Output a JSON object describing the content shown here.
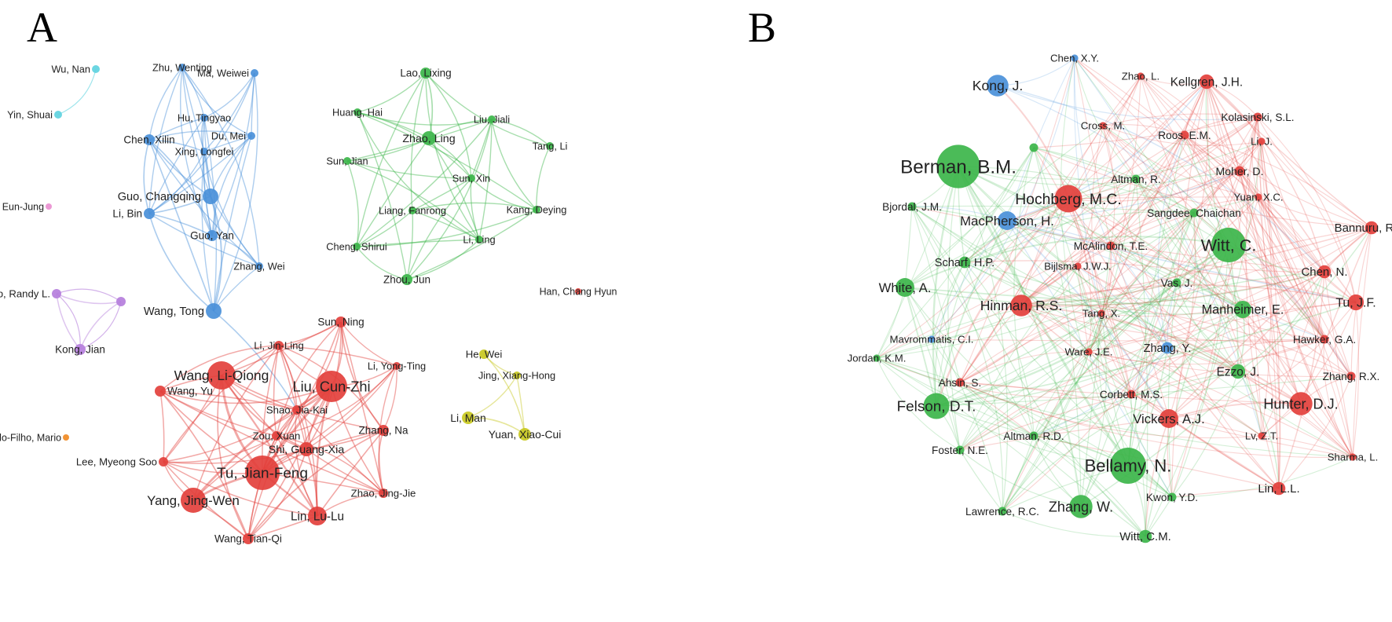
{
  "panels": [
    {
      "letter": "A",
      "clusters": {
        "red": "#e3403c",
        "blue": "#4a90d9",
        "green": "#3cb54a",
        "yellow": "#c8c820",
        "purple": "#b57edc",
        "cyan": "#5fd3e0",
        "orange": "#f08a24",
        "pink": "#e98fd0"
      },
      "nodes": [
        {
          "label": "Wu, Nan",
          "c": "cyan",
          "w": 1
        },
        {
          "label": "Yin, Shuai",
          "c": "cyan",
          "w": 1
        },
        {
          "label": "Zhu, Wenting",
          "c": "blue",
          "w": 1
        },
        {
          "label": "Ma, Weiwei",
          "c": "blue",
          "w": 1
        },
        {
          "label": "Hu, Tingyao",
          "c": "blue",
          "w": 1
        },
        {
          "label": "Chen, Xilin",
          "c": "blue",
          "w": 1.4
        },
        {
          "label": "Du, Mei",
          "c": "blue",
          "w": 1
        },
        {
          "label": "Xing, Longfei",
          "c": "blue",
          "w": 1
        },
        {
          "label": "Guo, Changqing",
          "c": "blue",
          "w": 2
        },
        {
          "label": "Li, Bin",
          "c": "blue",
          "w": 1.4
        },
        {
          "label": "Guo, Yan",
          "c": "blue",
          "w": 1.4
        },
        {
          "label": "Zhang, Wei",
          "c": "blue",
          "w": 1
        },
        {
          "label": "Wang, Tong",
          "c": "blue",
          "w": 2
        },
        {
          "label": "Kim, Eun-Jung",
          "c": "pink",
          "w": 0.8
        },
        {
          "label": "Gollub, Randy L.",
          "c": "purple",
          "w": 1.2
        },
        {
          "label": "",
          "c": "purple",
          "w": 1.2
        },
        {
          "label": "Kong, Jian",
          "c": "purple",
          "w": 1.4
        },
        {
          "label": "Bernardo-Filho, Mario",
          "c": "orange",
          "w": 0.8
        },
        {
          "label": "Lao, Lixing",
          "c": "green",
          "w": 1.4
        },
        {
          "label": "Huang, Hai",
          "c": "green",
          "w": 1
        },
        {
          "label": "Liu, Jiali",
          "c": "green",
          "w": 1
        },
        {
          "label": "Zhao, Ling",
          "c": "green",
          "w": 1.8
        },
        {
          "label": "Tang, Li",
          "c": "green",
          "w": 1
        },
        {
          "label": "Sun, Jian",
          "c": "green",
          "w": 1
        },
        {
          "label": "Sun, Xin",
          "c": "green",
          "w": 1
        },
        {
          "label": "Liang, Fanrong",
          "c": "green",
          "w": 1
        },
        {
          "label": "Kang, Deying",
          "c": "green",
          "w": 1
        },
        {
          "label": "Li, Ling",
          "c": "green",
          "w": 1
        },
        {
          "label": "Cheng, Shirui",
          "c": "green",
          "w": 1
        },
        {
          "label": "Zhou, Jun",
          "c": "green",
          "w": 1.4
        },
        {
          "label": "Han, Chang Hyun",
          "c": "red",
          "w": 0.8
        },
        {
          "label": "Sun, Ning",
          "c": "red",
          "w": 1.4
        },
        {
          "label": "Li, Jin-Ling",
          "c": "red",
          "w": 1.2
        },
        {
          "label": "Wang, Li-Qiong",
          "c": "red",
          "w": 3.6
        },
        {
          "label": "Li, Yong-Ting",
          "c": "red",
          "w": 1
        },
        {
          "label": "Liu, Cun-Zhi",
          "c": "red",
          "w": 4
        },
        {
          "label": "Wang, Yu",
          "c": "red",
          "w": 1.4
        },
        {
          "label": "Shao, Jia-Kai",
          "c": "red",
          "w": 1.2
        },
        {
          "label": "Zhang, Na",
          "c": "red",
          "w": 1.4
        },
        {
          "label": "Zou, Xuan",
          "c": "red",
          "w": 1.2
        },
        {
          "label": "Shi, Guang-Xia",
          "c": "red",
          "w": 1.8
        },
        {
          "label": "Lee, Myeong Soo",
          "c": "red",
          "w": 1.2
        },
        {
          "label": "Tu, Jian-Feng",
          "c": "red",
          "w": 4.4
        },
        {
          "label": "Zhao, Jing-Jie",
          "c": "red",
          "w": 1.2
        },
        {
          "label": "Yang, Jing-Wen",
          "c": "red",
          "w": 3.2
        },
        {
          "label": "Lin, Lu-Lu",
          "c": "red",
          "w": 2.4
        },
        {
          "label": "Wang, Tian-Qi",
          "c": "red",
          "w": 1.4
        },
        {
          "label": "He, Wei",
          "c": "yellow",
          "w": 1.2
        },
        {
          "label": "Jing, Xiang-Hong",
          "c": "yellow",
          "w": 1
        },
        {
          "label": "Li, Man",
          "c": "yellow",
          "w": 1.6
        },
        {
          "label": "Yuan, Xiao-Cui",
          "c": "yellow",
          "w": 1.6
        }
      ]
    },
    {
      "letter": "B",
      "clusters": {
        "red": "#e3403c",
        "blue": "#4a90d9",
        "green": "#3cb54a"
      },
      "nodes": [
        {
          "label": "Chen, X.Y.",
          "c": "blue",
          "w": 1
        },
        {
          "label": "Kong, J.",
          "c": "blue",
          "w": 3
        },
        {
          "label": "Zhao, L.",
          "c": "red",
          "w": 1
        },
        {
          "label": "Kellgren, J.H.",
          "c": "red",
          "w": 2
        },
        {
          "label": "Cross, M.",
          "c": "red",
          "w": 1
        },
        {
          "label": "Kolasinski, S.L.",
          "c": "red",
          "w": 1.2
        },
        {
          "label": "Roos, E.M.",
          "c": "red",
          "w": 1.2
        },
        {
          "label": "Li, J.",
          "c": "red",
          "w": 1
        },
        {
          "label": "Berman, B.M.",
          "c": "green",
          "w": 6
        },
        {
          "label": "Altman, R.",
          "c": "green",
          "w": 1.2
        },
        {
          "label": "Moher, D.",
          "c": "red",
          "w": 1.4
        },
        {
          "label": "Hochberg, M.C.",
          "c": "red",
          "w": 3.8
        },
        {
          "label": "Sangdee, Chaichan",
          "c": "green",
          "w": 1.2
        },
        {
          "label": "Yuan, X.C.",
          "c": "red",
          "w": 1
        },
        {
          "label": "Bjordal, J.M.",
          "c": "green",
          "w": 1.2
        },
        {
          "label": "MacPherson, H.",
          "c": "blue",
          "w": 2.6
        },
        {
          "label": "Witt, C.",
          "c": "green",
          "w": 4.8
        },
        {
          "label": "Bannuru, R.R.",
          "c": "red",
          "w": 1.8
        },
        {
          "label": "McAlindon, T.E.",
          "c": "red",
          "w": 1.2
        },
        {
          "label": "Scharf, H.P.",
          "c": "green",
          "w": 1.6
        },
        {
          "label": "Bijlsma, J.W.J.",
          "c": "red",
          "w": 1
        },
        {
          "label": "Vas, J.",
          "c": "green",
          "w": 1.2
        },
        {
          "label": "Chen, N.",
          "c": "red",
          "w": 1.8
        },
        {
          "label": "White, A.",
          "c": "green",
          "w": 2.6
        },
        {
          "label": "Hinman, R.S.",
          "c": "red",
          "w": 3
        },
        {
          "label": "Manheimer, E.",
          "c": "green",
          "w": 2.4
        },
        {
          "label": "Tu, J.F.",
          "c": "red",
          "w": 2.2
        },
        {
          "label": "Tang, X.",
          "c": "red",
          "w": 1
        },
        {
          "label": "Mavrommatis, C.I.",
          "c": "blue",
          "w": 1
        },
        {
          "label": "Ware, J.E.",
          "c": "red",
          "w": 1
        },
        {
          "label": "Zhang, Y.",
          "c": "blue",
          "w": 1.6
        },
        {
          "label": "Hawker, G.A.",
          "c": "red",
          "w": 1.2
        },
        {
          "label": "Jordan, K.M.",
          "c": "green",
          "w": 1
        },
        {
          "label": "Ezzo, J.",
          "c": "green",
          "w": 2
        },
        {
          "label": "Ahsin, S.",
          "c": "red",
          "w": 1.2
        },
        {
          "label": "Corbett, M.S.",
          "c": "red",
          "w": 1.2
        },
        {
          "label": "Zhang, R.X.",
          "c": "red",
          "w": 1.2
        },
        {
          "label": "Hunter, D.J.",
          "c": "red",
          "w": 3.2
        },
        {
          "label": "Felson, D.T.",
          "c": "green",
          "w": 3.6
        },
        {
          "label": "Vickers, A.J.",
          "c": "red",
          "w": 2.6
        },
        {
          "label": "Altman, R.D.",
          "c": "green",
          "w": 1.2
        },
        {
          "label": "Lv, Z.T.",
          "c": "red",
          "w": 1
        },
        {
          "label": "Foster, N.E.",
          "c": "green",
          "w": 1.2
        },
        {
          "label": "Sharma, L.",
          "c": "red",
          "w": 1
        },
        {
          "label": "Bellamy, N.",
          "c": "green",
          "w": 5
        },
        {
          "label": "Lin, L.L.",
          "c": "red",
          "w": 1.8
        },
        {
          "label": "Kwon, Y.D.",
          "c": "green",
          "w": 1.2
        },
        {
          "label": "Zhang, W.",
          "c": "green",
          "w": 3.2
        },
        {
          "label": "Lawrence, R.C.",
          "c": "green",
          "w": 1.2
        },
        {
          "label": "Witt, C.M.",
          "c": "green",
          "w": 1.8
        },
        {
          "label": "",
          "c": "green",
          "w": 1.2
        }
      ]
    }
  ]
}
